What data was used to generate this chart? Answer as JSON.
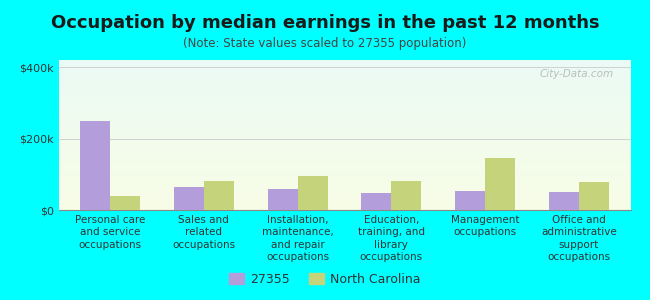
{
  "title": "Occupation by median earnings in the past 12 months",
  "subtitle": "(Note: State values scaled to 27355 population)",
  "background_color": "#00FFFF",
  "categories": [
    "Personal care\nand service\noccupations",
    "Sales and\nrelated\noccupations",
    "Installation,\nmaintenance,\nand repair\noccupations",
    "Education,\ntraining, and\nlibrary\noccupations",
    "Management\noccupations",
    "Office and\nadministrative\nsupport\noccupations"
  ],
  "values_27355": [
    250000,
    65000,
    60000,
    48000,
    53000,
    50000
  ],
  "values_nc": [
    38000,
    80000,
    95000,
    82000,
    145000,
    78000
  ],
  "color_27355": "#b39ddb",
  "color_nc": "#c5d47a",
  "ylim": [
    0,
    420000
  ],
  "yticks": [
    0,
    200000,
    400000
  ],
  "ytick_labels": [
    "$0",
    "$200k",
    "$400k"
  ],
  "legend_27355": "27355",
  "legend_nc": "North Carolina",
  "bar_width": 0.32,
  "watermark": "City-Data.com",
  "grid_color": "#cccccc",
  "title_fontsize": 13,
  "subtitle_fontsize": 8.5,
  "tick_label_fontsize": 7.5,
  "ytick_fontsize": 8
}
